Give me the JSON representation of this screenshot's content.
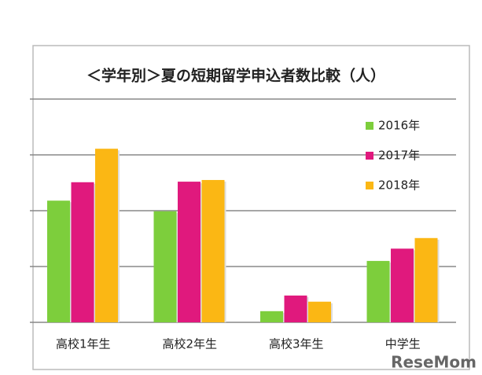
{
  "chart_data": {
    "type": "bar",
    "title": "＜学年別＞夏の短期留学申込者数比較（人）",
    "categories": [
      "高校1年生",
      "高校2年生",
      "高校3年生",
      "中学生"
    ],
    "series": [
      {
        "name": "2016年",
        "color": "#7dce3c",
        "values": [
          2.18,
          1.99,
          0.2,
          1.1
        ]
      },
      {
        "name": "2017年",
        "color": "#e0197d",
        "values": [
          2.51,
          2.52,
          0.48,
          1.32
        ]
      },
      {
        "name": "2018年",
        "color": "#fbb714",
        "values": [
          3.11,
          2.55,
          0.37,
          1.51
        ]
      }
    ],
    "ylim": [
      0,
      4
    ],
    "gridlines": [
      0,
      1,
      2,
      3,
      4
    ],
    "grid": true,
    "legend": "top-right",
    "watermark": "ReseMom"
  }
}
